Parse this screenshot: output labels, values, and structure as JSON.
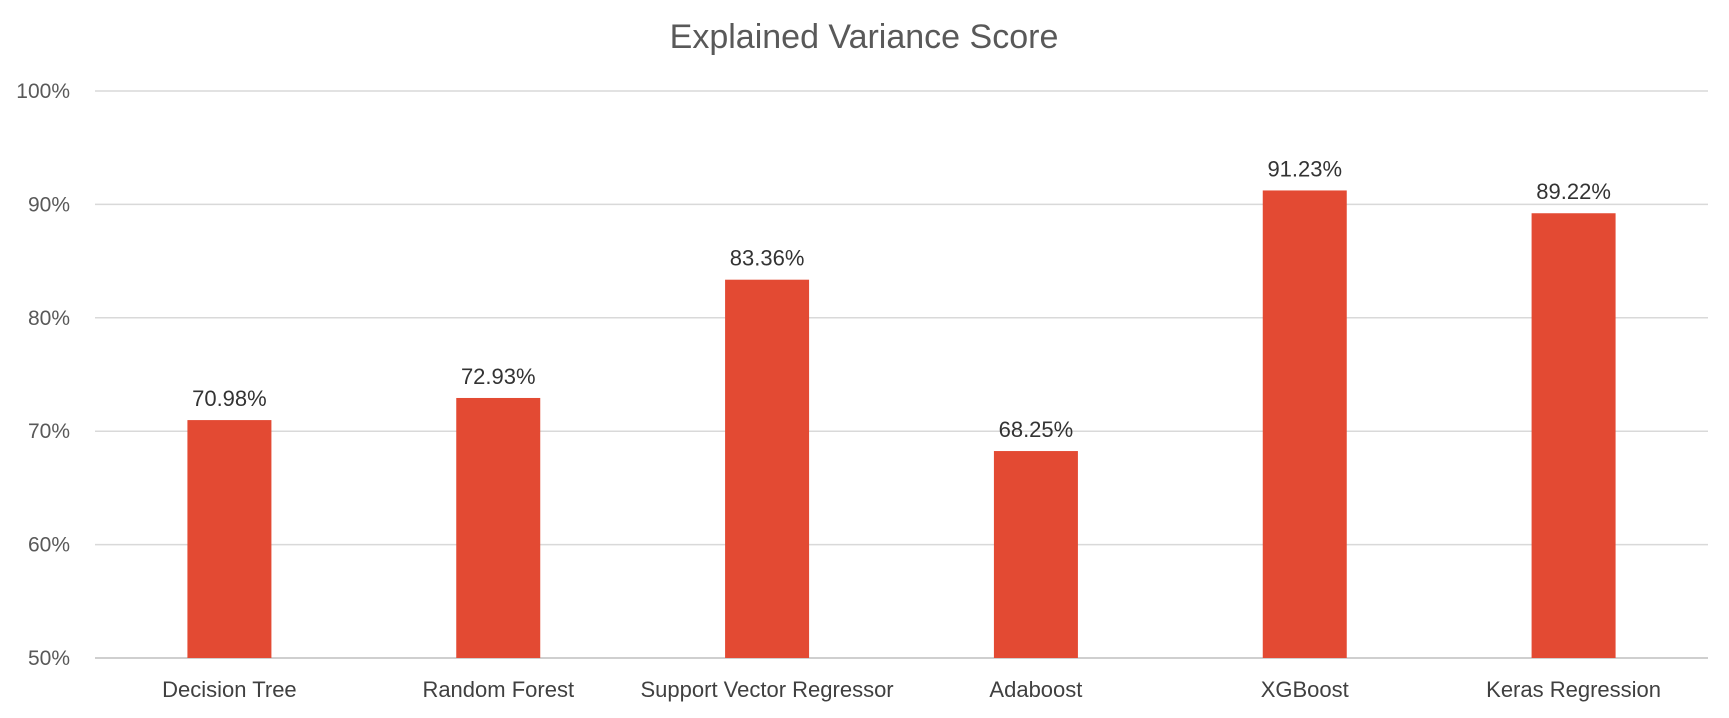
{
  "chart_data": {
    "type": "bar",
    "title": "Explained Variance Score",
    "xlabel": "",
    "ylabel": "",
    "categories": [
      "Decision Tree",
      "Random Forest",
      "Support Vector Regressor",
      "Adaboost",
      "XGBoost",
      "Keras Regression"
    ],
    "values": [
      70.98,
      72.93,
      83.36,
      68.25,
      91.23,
      89.22
    ],
    "data_labels": [
      "70.98%",
      "72.93%",
      "83.36%",
      "68.25%",
      "91.23%",
      "89.22%"
    ],
    "ylim": [
      50,
      100
    ],
    "yticks": [
      50,
      60,
      70,
      80,
      90,
      100
    ],
    "ytick_labels": [
      "50%",
      "60%",
      "70%",
      "80%",
      "90%",
      "100%"
    ],
    "grid": true,
    "legend": "none",
    "bar_color": "#E34A33"
  }
}
